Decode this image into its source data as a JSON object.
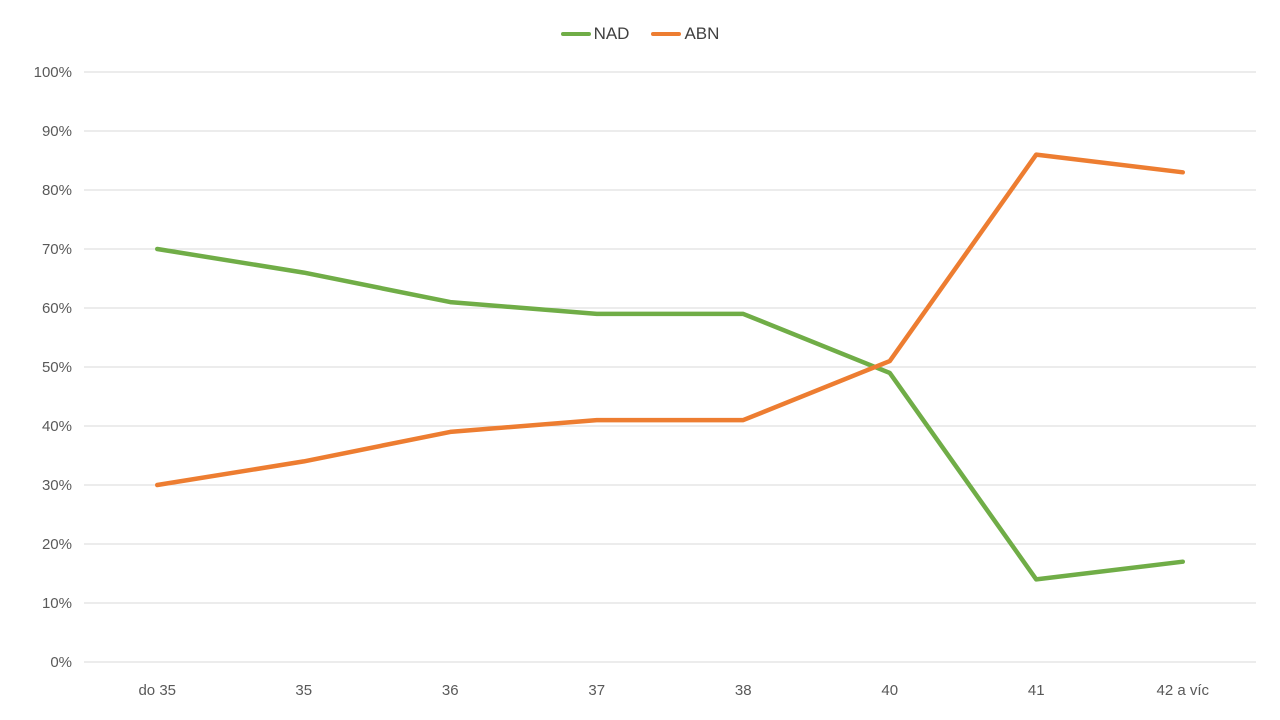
{
  "chart_data": {
    "type": "line",
    "categories": [
      "do 35",
      "35",
      "36",
      "37",
      "38",
      "40",
      "41",
      "42 a víc"
    ],
    "series": [
      {
        "name": "NAD",
        "color": "#70AD47",
        "values": [
          70,
          66,
          61,
          59,
          59,
          49,
          14,
          17
        ]
      },
      {
        "name": "ABN",
        "color": "#ED7D31",
        "values": [
          30,
          34,
          39,
          41,
          41,
          51,
          86,
          83
        ]
      }
    ],
    "title": "",
    "xlabel": "",
    "ylabel": "",
    "ylim": [
      0,
      100
    ],
    "ytick_step": 10,
    "ytick_labels": [
      "0%",
      "10%",
      "20%",
      "30%",
      "40%",
      "50%",
      "60%",
      "70%",
      "80%",
      "90%",
      "100%"
    ],
    "grid": "horizontal",
    "legend_position": "top-center"
  },
  "colors": {
    "background": "#FFFFFF",
    "gridline": "#D9D9D9",
    "axis_label": "#595959",
    "legend_text": "#404040"
  }
}
